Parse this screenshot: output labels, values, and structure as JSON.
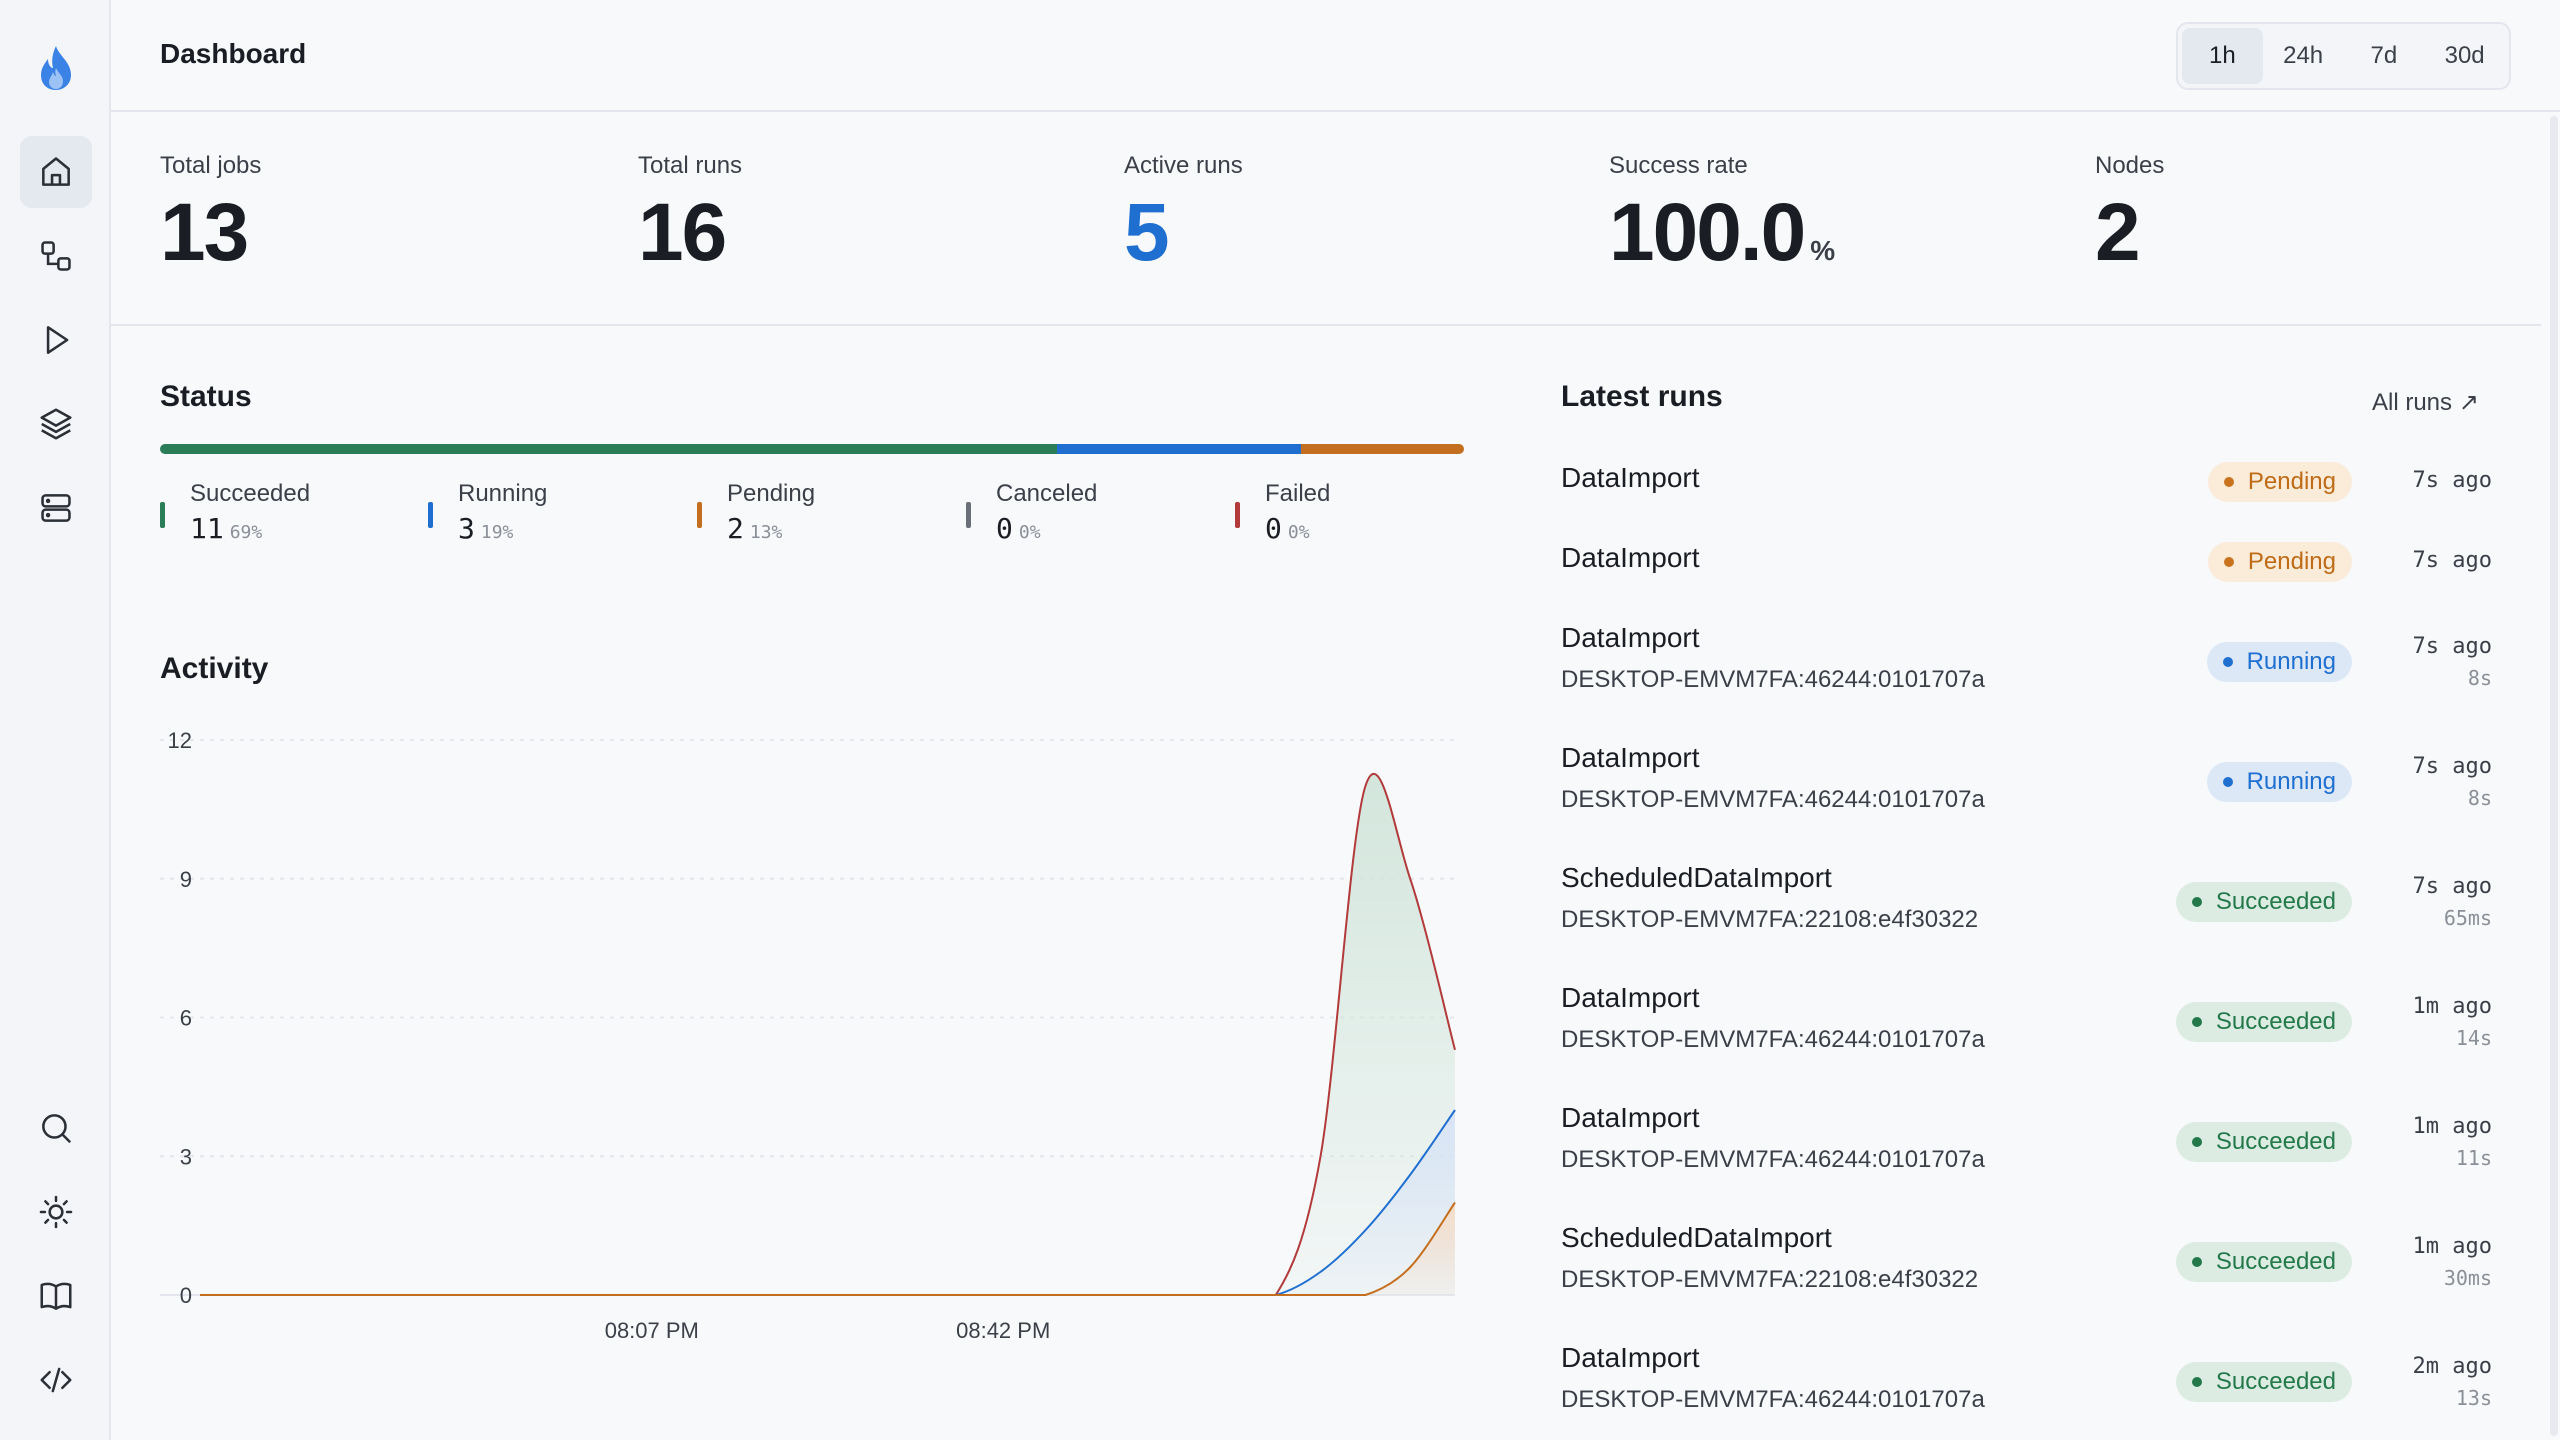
{
  "app": {
    "page_title": "Dashboard"
  },
  "sidebar": {
    "items": [
      {
        "name": "home",
        "icon": "home-icon",
        "active": true
      },
      {
        "name": "jobs",
        "icon": "workflow-icon"
      },
      {
        "name": "runs",
        "icon": "play-icon"
      },
      {
        "name": "queues",
        "icon": "layers-icon"
      },
      {
        "name": "nodes",
        "icon": "server-icon"
      }
    ],
    "bottom": [
      {
        "name": "search",
        "icon": "search-icon"
      },
      {
        "name": "theme",
        "icon": "sun-icon"
      },
      {
        "name": "docs",
        "icon": "book-icon"
      },
      {
        "name": "api",
        "icon": "code-icon"
      }
    ]
  },
  "time_range": {
    "options": [
      "1h",
      "24h",
      "7d",
      "30d"
    ],
    "selected": "1h"
  },
  "stats": {
    "total_jobs": {
      "label": "Total jobs",
      "value": "13"
    },
    "total_runs": {
      "label": "Total runs",
      "value": "16"
    },
    "active_runs": {
      "label": "Active runs",
      "value": "5"
    },
    "success_rate": {
      "label": "Success rate",
      "value": "100.0",
      "unit": "%"
    },
    "nodes": {
      "label": "Nodes",
      "value": "2"
    }
  },
  "status": {
    "title": "Status",
    "items": [
      {
        "label": "Succeeded",
        "count": "11",
        "pct": "69%",
        "fraction": 0.6875,
        "color": "#2a7d56"
      },
      {
        "label": "Running",
        "count": "3",
        "pct": "19%",
        "fraction": 0.1875,
        "color": "#1f6fd1"
      },
      {
        "label": "Pending",
        "count": "2",
        "pct": "13%",
        "fraction": 0.125,
        "color": "#c46f1f"
      },
      {
        "label": "Canceled",
        "count": "0",
        "pct": "0%",
        "fraction": 0,
        "color": "#6b7078"
      },
      {
        "label": "Failed",
        "count": "0",
        "pct": "0%",
        "fraction": 0,
        "color": "#b23a3a"
      }
    ]
  },
  "activity": {
    "title": "Activity"
  },
  "chart_data": {
    "type": "area",
    "title": "Activity",
    "xlabel": "",
    "ylabel": "",
    "ylim": [
      0,
      12
    ],
    "yticks": [
      0,
      3,
      6,
      9,
      12
    ],
    "xticks": [
      "08:07 PM",
      "08:42 PM"
    ],
    "x": [
      0,
      1,
      2,
      3,
      4,
      5,
      6,
      7,
      8,
      9,
      10,
      11,
      12,
      13,
      14,
      15,
      16,
      17,
      18,
      19,
      20,
      21,
      22,
      23,
      24,
      25,
      26,
      27,
      28
    ],
    "series": [
      {
        "key": "total",
        "color": "#b23a3a",
        "fill": "#d3e6dc",
        "values": [
          0,
          0,
          0,
          0,
          0,
          0,
          0,
          0,
          0,
          0,
          0,
          0,
          0,
          0,
          0,
          0,
          0,
          0,
          0,
          0,
          0,
          0,
          0,
          0,
          0,
          3,
          11,
          9,
          5.3
        ]
      },
      {
        "key": "running",
        "color": "#1f6fd1",
        "fill": "#d8e4f6",
        "values": [
          0,
          0,
          0,
          0,
          0,
          0,
          0,
          0,
          0,
          0,
          0,
          0,
          0,
          0,
          0,
          0,
          0,
          0,
          0,
          0,
          0,
          0,
          0,
          0,
          0,
          0.5,
          1.4,
          2.6,
          4.0
        ]
      },
      {
        "key": "pending",
        "color": "#c46f1f",
        "fill": "#f5ddc8",
        "values": [
          0,
          0,
          0,
          0,
          0,
          0,
          0,
          0,
          0,
          0,
          0,
          0,
          0,
          0,
          0,
          0,
          0,
          0,
          0,
          0,
          0,
          0,
          0,
          0,
          0,
          0,
          0,
          0.6,
          2.0
        ]
      }
    ]
  },
  "latest_runs": {
    "title": "Latest runs",
    "all_runs_label": "All runs ↗",
    "items": [
      {
        "name": "DataImport",
        "node": "",
        "status": "Pending",
        "status_class": "pending",
        "ago": "7s ago",
        "duration": ""
      },
      {
        "name": "DataImport",
        "node": "",
        "status": "Pending",
        "status_class": "pending",
        "ago": "7s ago",
        "duration": ""
      },
      {
        "name": "DataImport",
        "node": "DESKTOP-EMVM7FA:46244:0101707a",
        "status": "Running",
        "status_class": "running",
        "ago": "7s ago",
        "duration": "8s"
      },
      {
        "name": "DataImport",
        "node": "DESKTOP-EMVM7FA:46244:0101707a",
        "status": "Running",
        "status_class": "running",
        "ago": "7s ago",
        "duration": "8s"
      },
      {
        "name": "ScheduledDataImport",
        "node": "DESKTOP-EMVM7FA:22108:e4f30322",
        "status": "Succeeded",
        "status_class": "succeeded",
        "ago": "7s ago",
        "duration": "65ms"
      },
      {
        "name": "DataImport",
        "node": "DESKTOP-EMVM7FA:46244:0101707a",
        "status": "Succeeded",
        "status_class": "succeeded",
        "ago": "1m ago",
        "duration": "14s"
      },
      {
        "name": "DataImport",
        "node": "DESKTOP-EMVM7FA:46244:0101707a",
        "status": "Succeeded",
        "status_class": "succeeded",
        "ago": "1m ago",
        "duration": "11s"
      },
      {
        "name": "ScheduledDataImport",
        "node": "DESKTOP-EMVM7FA:22108:e4f30322",
        "status": "Succeeded",
        "status_class": "succeeded",
        "ago": "1m ago",
        "duration": "30ms"
      },
      {
        "name": "DataImport",
        "node": "DESKTOP-EMVM7FA:46244:0101707a",
        "status": "Succeeded",
        "status_class": "succeeded",
        "ago": "2m ago",
        "duration": "13s"
      }
    ]
  }
}
